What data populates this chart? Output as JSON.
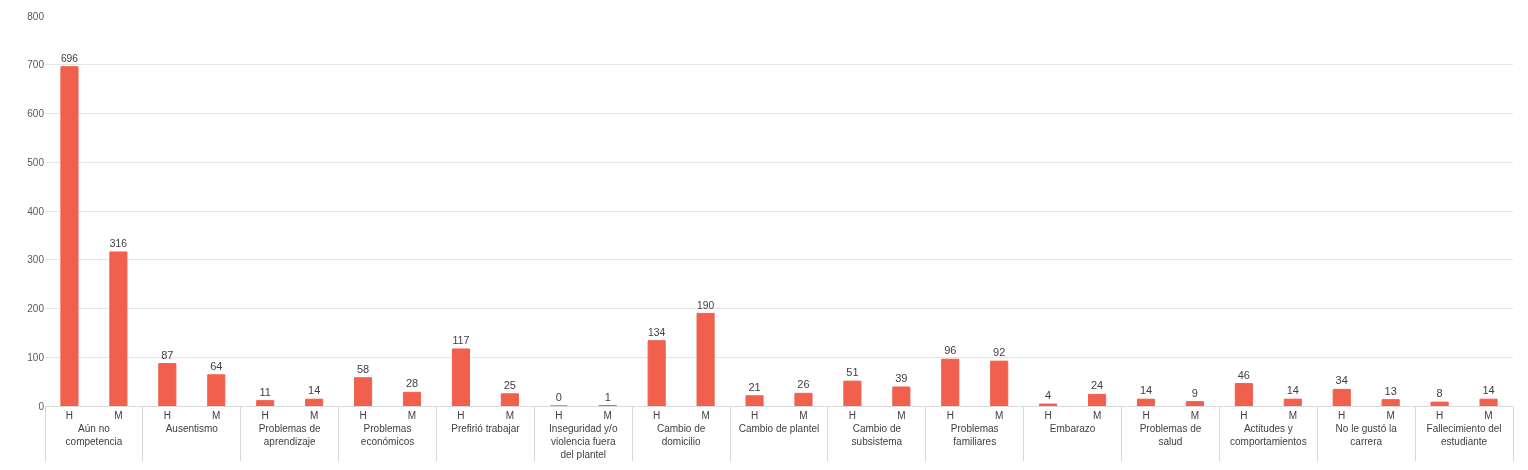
{
  "chart_data": {
    "type": "bar",
    "categories": [
      "Aún no competencia",
      "Ausentismo",
      "Problemas de aprendizaje",
      "Problemas económicos",
      "Prefirió trabajar",
      "Inseguridad y/o violencia fuera del plantel",
      "Cambio de domicilio",
      "Cambio de plantel",
      "Cambio de subsistema",
      "Problemas familiares",
      "Embarazo",
      "Problemas de salud",
      "Actitudes y comportamientos",
      "No le gustó la carrera",
      "Fallecimiento del estudiante"
    ],
    "series": [
      {
        "name": "H",
        "color": "#f0604d",
        "values": [
          696,
          87,
          11,
          58,
          117,
          0,
          134,
          21,
          51,
          96,
          4,
          14,
          46,
          34,
          8
        ]
      },
      {
        "name": "M",
        "color": "#f0604d",
        "values": [
          316,
          64,
          14,
          28,
          25,
          1,
          190,
          26,
          39,
          92,
          24,
          9,
          14,
          13,
          14
        ]
      }
    ],
    "ylim": [
      0,
      800
    ],
    "yticks": [
      0,
      100,
      200,
      300,
      400,
      500,
      600,
      700,
      800
    ],
    "grid": "y",
    "data_labels": true,
    "legend": false
  }
}
